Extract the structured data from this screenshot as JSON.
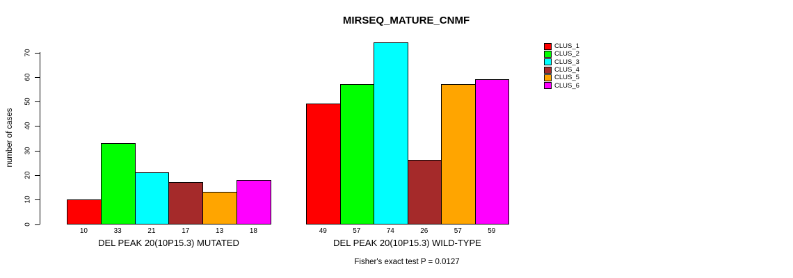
{
  "chart_data": {
    "type": "bar",
    "title": "MIRSEQ_MATURE_CNMF",
    "ylabel": "number of cases",
    "xlabel": "",
    "ylim": [
      0,
      70
    ],
    "yticks": [
      0,
      10,
      20,
      30,
      40,
      50,
      60,
      70
    ],
    "grid": false,
    "legend_position": "top-right",
    "categories": [
      "DEL PEAK 20(10P15.3) MUTATED",
      "DEL PEAK 20(10P15.3) WILD-TYPE"
    ],
    "series": [
      {
        "name": "CLUS_1",
        "color": "#FF0000",
        "values": [
          10,
          49
        ]
      },
      {
        "name": "CLUS_2",
        "color": "#00FF00",
        "values": [
          33,
          57
        ]
      },
      {
        "name": "CLUS_3",
        "color": "#00FFFF",
        "values": [
          21,
          74
        ]
      },
      {
        "name": "CLUS_4",
        "color": "#A52A2A",
        "values": [
          17,
          26
        ]
      },
      {
        "name": "CLUS_5",
        "color": "#FFA500",
        "values": [
          13,
          57
        ]
      },
      {
        "name": "CLUS_6",
        "color": "#FF00FF",
        "values": [
          18,
          59
        ]
      }
    ],
    "bar_values_labeled": true,
    "annotation": "Fisher's exact test P = 0.0127",
    "background_color": "#FFFFFF",
    "text_color": "#000000"
  }
}
